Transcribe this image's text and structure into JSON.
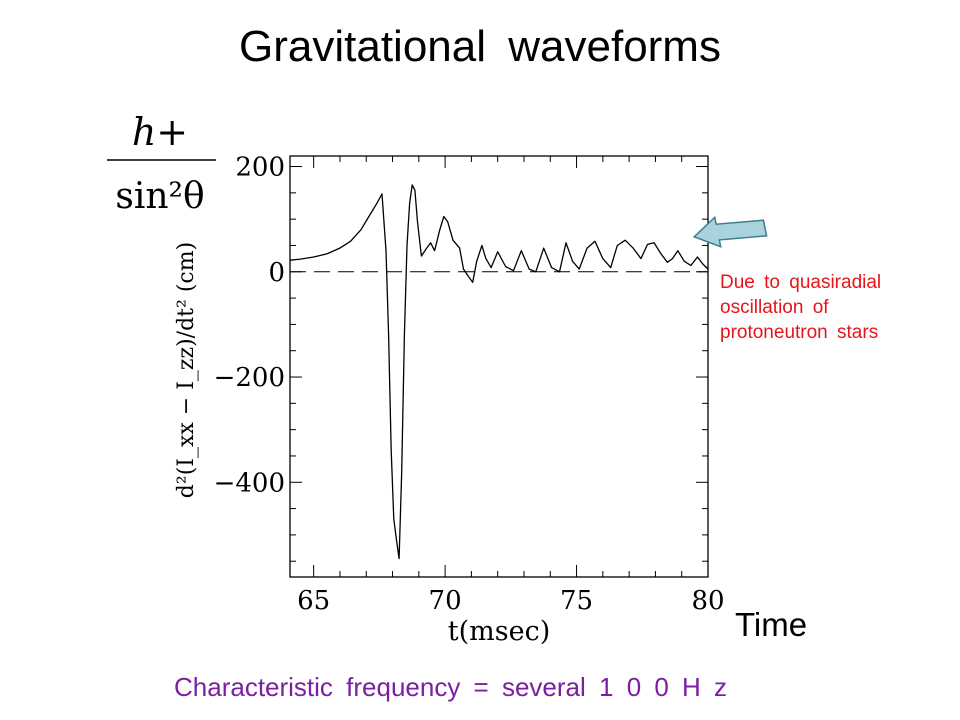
{
  "slide": {
    "title": "Gravitational  waveforms",
    "annotation_lines": [
      "Due  to  quasiradial",
      "oscillation  of",
      "protoneutron  stars"
    ],
    "time_label": "Time",
    "frequency_note": "Characteristic  frequency  =  several   1  0  0  H  z"
  },
  "colors": {
    "annotation": "#e8141b",
    "frequency": "#7b1fa2",
    "arrow_fill": "#a9d3dc",
    "arrow_stroke": "#3e7d91"
  },
  "chart_data": {
    "type": "line",
    "xlabel": "t(msec)",
    "ylabel": "d²(I_xx − I_zz)/dt² (cm)",
    "ylabel_alt": {
      "numerator": "h+",
      "denominator": "sin²θ"
    },
    "xlim": [
      64.1,
      80
    ],
    "ylim": [
      -580,
      220
    ],
    "x_ticks": [
      65,
      70,
      75,
      80
    ],
    "y_ticks": [
      200,
      0,
      -200,
      -400
    ],
    "y_tick_labels": [
      "200",
      "0",
      "−200",
      "−400"
    ],
    "grid": false,
    "zero_line": "dashed",
    "series": [
      {
        "x": [
          64.1,
          64.5,
          65.0,
          65.5,
          66.0,
          66.4,
          66.8,
          67.1,
          67.4,
          67.6,
          67.75,
          67.85,
          67.95,
          68.05,
          68.15,
          68.25,
          68.35,
          68.45,
          68.55,
          68.65,
          68.75,
          68.85,
          68.95,
          69.1,
          69.3,
          69.45,
          69.6,
          69.8,
          69.95,
          70.1,
          70.3,
          70.55,
          70.7,
          70.9,
          71.05,
          71.2,
          71.4,
          71.55,
          71.75,
          72.0,
          72.3,
          72.6,
          72.9,
          73.2,
          73.45,
          73.75,
          74.05,
          74.35,
          74.6,
          74.85,
          75.1,
          75.4,
          75.7,
          76.0,
          76.3,
          76.55,
          76.85,
          77.15,
          77.45,
          77.7,
          77.95,
          78.2,
          78.45,
          78.65,
          78.85,
          79.1,
          79.35,
          79.6,
          79.8,
          80.0
        ],
        "y": [
          22,
          24,
          28,
          34,
          45,
          58,
          80,
          105,
          130,
          148,
          40,
          -120,
          -340,
          -470,
          -510,
          -545,
          -380,
          -120,
          50,
          130,
          165,
          155,
          95,
          30,
          45,
          55,
          40,
          80,
          105,
          95,
          60,
          45,
          5,
          -10,
          -20,
          20,
          50,
          25,
          8,
          38,
          10,
          2,
          40,
          5,
          0,
          45,
          8,
          0,
          55,
          20,
          5,
          45,
          58,
          25,
          8,
          50,
          60,
          45,
          25,
          52,
          55,
          35,
          18,
          25,
          40,
          20,
          12,
          28,
          15,
          5
        ]
      }
    ],
    "arrow_target": {
      "x": 79.4,
      "y": 55
    }
  }
}
